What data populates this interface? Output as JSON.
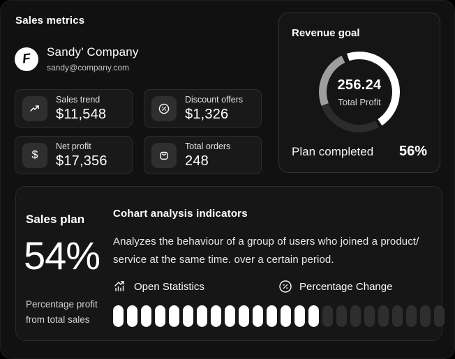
{
  "page": {
    "title": "Sales metrics"
  },
  "company": {
    "name": "Sandy’ Company",
    "email": "sandy@company.com",
    "logo_letter": "F"
  },
  "metrics": {
    "dollar_glyph": "$",
    "cards": [
      {
        "label": "Sales trend",
        "value": "$11,548",
        "icon": "trend-up-icon"
      },
      {
        "label": "Discount offers",
        "value": "$1,326",
        "icon": "discount-badge-icon"
      },
      {
        "label": "Net profit",
        "value": "$17,356",
        "icon": "dollar-icon"
      },
      {
        "label": "Total orders",
        "value": "248",
        "icon": "shopping-bag-icon"
      }
    ]
  },
  "revenue_goal": {
    "title": "Revenue goal",
    "center_value": "256.24",
    "center_label": "Total Profit",
    "footer_label": "Plan completed",
    "footer_value": "56%",
    "ring": {
      "completed_percent": 56,
      "completed_color": "#ffffff",
      "remaining_dark_color": "#2c2c2d",
      "remaining_gray_color": "#9e9e9e",
      "gap_color": "#151516"
    }
  },
  "sales_plan": {
    "title": "Sales plan",
    "value": "54%",
    "caption_line1": "Percentage profit",
    "caption_line2": "from total sales"
  },
  "cohort": {
    "title": "Cohart analysis indicators",
    "description": "Analyzes the behaviour of a group of users who joined a product/ service at the same time. over a certain period.",
    "actions": [
      {
        "label": "Open Statistics",
        "icon": "bar-chart-arrow-icon"
      },
      {
        "label": "Percentage Change",
        "icon": "percent-circle-icon"
      }
    ],
    "progress": {
      "total_segments": 24,
      "filled_segments": 15,
      "filled_color": "#ffffff",
      "empty_color": "#2e2e2f"
    }
  }
}
